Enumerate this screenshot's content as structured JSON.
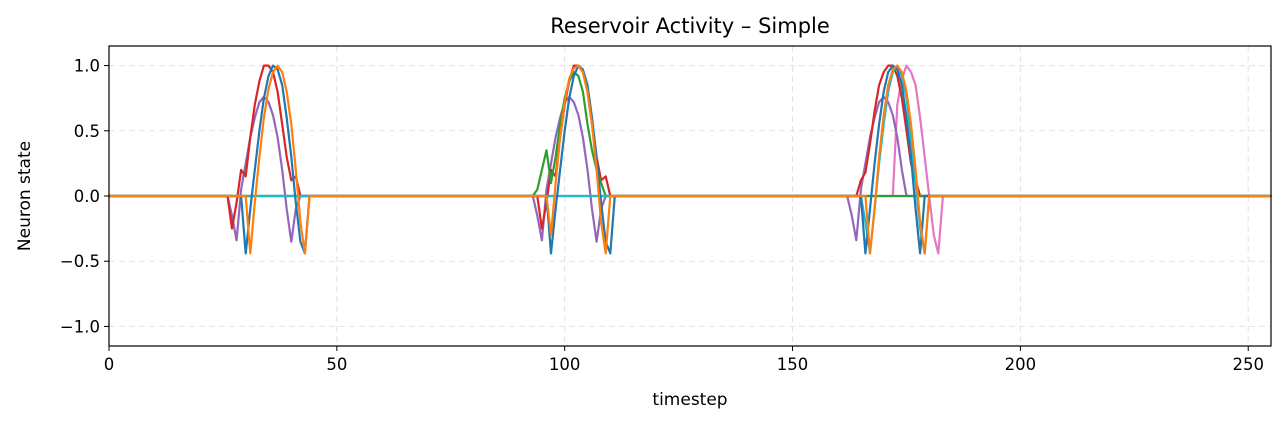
{
  "chart_data": {
    "type": "line",
    "title": "Reservoir Activity – Simple",
    "xlabel": "timestep",
    "ylabel": "Neuron state",
    "xlim": [
      0,
      255
    ],
    "ylim": [
      -1.15,
      1.15
    ],
    "xticks": [
      0,
      50,
      100,
      150,
      200,
      250
    ],
    "xtick_labels": [
      "0",
      "50",
      "100",
      "150",
      "200",
      "250"
    ],
    "yticks": [
      1.0,
      0.5,
      0.0,
      -0.5,
      -1.0
    ],
    "ytick_labels": [
      "1.0",
      "0.5",
      "0.0",
      "−0.5",
      "−1.0"
    ],
    "grid": true,
    "legend": "none",
    "series": [
      {
        "color": "#e377c2",
        "x": [
          0,
          172,
          173,
          174,
          175,
          176,
          177,
          178,
          179,
          180,
          181,
          182,
          183,
          255
        ],
        "y": [
          0,
          0,
          0.7,
          0.9,
          1.0,
          0.95,
          0.85,
          0.6,
          0.3,
          0.0,
          -0.3,
          -0.44,
          0,
          0
        ]
      },
      {
        "color": "#9467bd",
        "x": [
          0,
          26,
          27,
          28,
          29,
          30,
          31,
          32,
          33,
          34,
          35,
          36,
          37,
          38,
          39,
          40,
          41,
          42,
          43,
          93,
          94,
          95,
          96,
          97,
          98,
          99,
          100,
          101,
          102,
          103,
          104,
          105,
          106,
          107,
          108,
          109,
          110,
          162,
          163,
          164,
          165,
          166,
          167,
          168,
          169,
          170,
          171,
          172,
          173,
          174,
          175,
          255
        ],
        "y": [
          0,
          0,
          -0.15,
          -0.34,
          0.05,
          0.25,
          0.45,
          0.6,
          0.72,
          0.76,
          0.72,
          0.62,
          0.45,
          0.2,
          -0.1,
          -0.35,
          -0.1,
          0,
          0,
          0,
          -0.15,
          -0.34,
          0.05,
          0.25,
          0.45,
          0.6,
          0.72,
          0.76,
          0.72,
          0.62,
          0.45,
          0.2,
          -0.1,
          -0.35,
          -0.1,
          0,
          0,
          0,
          -0.15,
          -0.34,
          0.05,
          0.25,
          0.45,
          0.6,
          0.72,
          0.76,
          0.72,
          0.62,
          0.45,
          0.2,
          0,
          0
        ]
      },
      {
        "color": "#d62728",
        "x": [
          0,
          26,
          27,
          28,
          29,
          30,
          31,
          32,
          33,
          34,
          35,
          36,
          37,
          38,
          39,
          40,
          41,
          42,
          43,
          94,
          95,
          96,
          97,
          98,
          99,
          100,
          101,
          102,
          103,
          104,
          105,
          106,
          107,
          108,
          109,
          110,
          164,
          165,
          166,
          167,
          168,
          169,
          170,
          171,
          172,
          173,
          174,
          175,
          176,
          177,
          178,
          255
        ],
        "y": [
          0,
          0,
          -0.25,
          -0.05,
          0.2,
          0.15,
          0.45,
          0.7,
          0.88,
          1.0,
          1.0,
          0.95,
          0.8,
          0.55,
          0.3,
          0.12,
          0.15,
          0,
          0,
          0,
          -0.25,
          -0.05,
          0.2,
          0.15,
          0.45,
          0.7,
          0.88,
          1.0,
          1.0,
          0.95,
          0.8,
          0.55,
          0.3,
          0.12,
          0.15,
          0,
          0,
          0.12,
          0.18,
          0.4,
          0.65,
          0.85,
          0.95,
          1.0,
          1.0,
          0.92,
          0.75,
          0.5,
          0.25,
          0.12,
          0,
          0
        ]
      },
      {
        "color": "#2ca02c",
        "x": [
          0,
          93,
          94,
          95,
          96,
          97,
          98,
          99,
          100,
          101,
          102,
          103,
          104,
          105,
          106,
          107,
          108,
          109,
          255
        ],
        "y": [
          0,
          0,
          0.05,
          0.2,
          0.35,
          0.1,
          0.3,
          0.55,
          0.75,
          0.88,
          0.95,
          0.92,
          0.8,
          0.55,
          0.35,
          0.2,
          0.1,
          0,
          0
        ]
      },
      {
        "color": "#17becf",
        "x": [
          0,
          165,
          166,
          167,
          168,
          169,
          170,
          171,
          172,
          173,
          174,
          175,
          176,
          177,
          178,
          179,
          180,
          255
        ],
        "y": [
          0,
          0,
          -0.2,
          -0.44,
          -0.1,
          0.25,
          0.55,
          0.8,
          0.95,
          1.0,
          0.92,
          0.75,
          0.45,
          0.1,
          -0.25,
          -0.44,
          0,
          0
        ]
      },
      {
        "color": "#1f77b4",
        "x": [
          0,
          29,
          30,
          31,
          32,
          33,
          34,
          35,
          36,
          37,
          38,
          39,
          40,
          41,
          42,
          43,
          44,
          95,
          96,
          97,
          98,
          99,
          100,
          101,
          102,
          103,
          104,
          105,
          106,
          107,
          108,
          109,
          110,
          111,
          164,
          165,
          166,
          167,
          168,
          169,
          170,
          171,
          172,
          173,
          174,
          175,
          176,
          177,
          178,
          179,
          255
        ],
        "y": [
          0,
          0,
          -0.44,
          -0.1,
          0.2,
          0.5,
          0.75,
          0.92,
          1.0,
          0.97,
          0.85,
          0.6,
          0.3,
          -0.05,
          -0.35,
          -0.44,
          0,
          0,
          0,
          -0.44,
          -0.1,
          0.2,
          0.5,
          0.75,
          0.92,
          1.0,
          0.97,
          0.85,
          0.6,
          0.3,
          -0.05,
          -0.35,
          -0.44,
          0,
          0,
          0,
          -0.44,
          -0.1,
          0.25,
          0.55,
          0.8,
          0.95,
          1.0,
          0.97,
          0.85,
          0.6,
          0.3,
          -0.1,
          -0.44,
          0,
          0
        ]
      },
      {
        "color": "#ff7f0e",
        "x": [
          0,
          30,
          31,
          32,
          33,
          34,
          35,
          36,
          37,
          38,
          39,
          40,
          41,
          42,
          43,
          44,
          96,
          97,
          98,
          99,
          100,
          101,
          102,
          103,
          104,
          105,
          106,
          107,
          108,
          109,
          110,
          111,
          166,
          167,
          168,
          169,
          170,
          171,
          172,
          173,
          174,
          175,
          176,
          177,
          178,
          179,
          180,
          181,
          255
        ],
        "y": [
          0,
          0,
          -0.44,
          -0.05,
          0.3,
          0.6,
          0.82,
          0.95,
          1.0,
          0.95,
          0.8,
          0.55,
          0.2,
          -0.2,
          -0.44,
          0,
          0,
          -0.3,
          0.1,
          0.45,
          0.72,
          0.9,
          0.98,
          1.0,
          0.95,
          0.8,
          0.55,
          0.2,
          -0.2,
          -0.44,
          0,
          0,
          0,
          -0.44,
          -0.1,
          0.3,
          0.62,
          0.85,
          0.97,
          1.0,
          0.95,
          0.8,
          0.55,
          0.2,
          -0.2,
          -0.44,
          0,
          0,
          0
        ]
      }
    ]
  }
}
